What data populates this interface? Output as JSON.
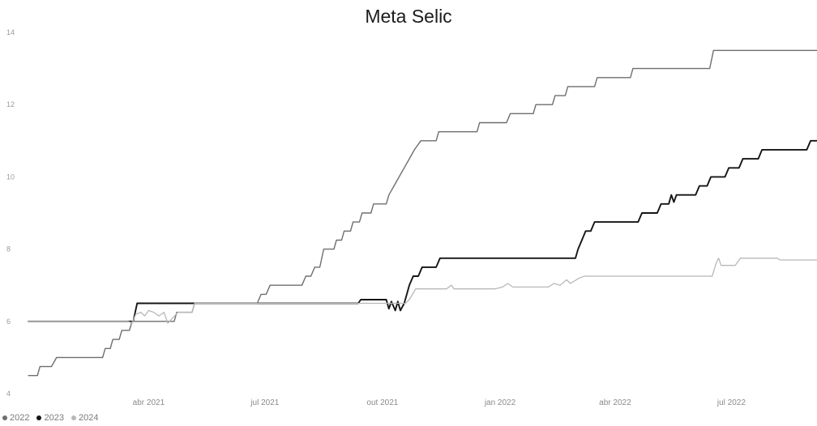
{
  "chart_data": {
    "type": "line",
    "title": "Meta Selic",
    "xlabel": "",
    "ylabel": "",
    "ylim": [
      4,
      14
    ],
    "xlim": [
      "2020-12-26",
      "2022-09-06"
    ],
    "yticks": [
      4,
      6,
      8,
      10,
      12,
      14
    ],
    "xticks": [
      {
        "date": "2021-04-01",
        "label": "abr 2021"
      },
      {
        "date": "2021-07-01",
        "label": "jul 2021"
      },
      {
        "date": "2021-10-01",
        "label": "out 2021"
      },
      {
        "date": "2022-01-01",
        "label": "jan 2022"
      },
      {
        "date": "2022-04-01",
        "label": "abr 2022"
      },
      {
        "date": "2022-07-01",
        "label": "jul 2022"
      }
    ],
    "grid": false,
    "legend": "bottom-left",
    "series": [
      {
        "name": "2022",
        "color": "#6e6e6e",
        "points": [
          [
            "2020-12-28",
            4.5
          ],
          [
            "2021-01-04",
            4.5
          ],
          [
            "2021-01-06",
            4.75
          ],
          [
            "2021-01-15",
            4.75
          ],
          [
            "2021-01-19",
            5.0
          ],
          [
            "2021-02-24",
            5.0
          ],
          [
            "2021-02-26",
            5.25
          ],
          [
            "2021-03-02",
            5.25
          ],
          [
            "2021-03-04",
            5.5
          ],
          [
            "2021-03-09",
            5.5
          ],
          [
            "2021-03-11",
            5.75
          ],
          [
            "2021-03-17",
            5.75
          ],
          [
            "2021-03-19",
            6.0
          ],
          [
            "2021-04-21",
            6.0
          ],
          [
            "2021-04-23",
            6.25
          ],
          [
            "2021-05-05",
            6.25
          ],
          [
            "2021-05-07",
            6.5
          ],
          [
            "2021-06-25",
            6.5
          ],
          [
            "2021-06-28",
            6.75
          ],
          [
            "2021-07-02",
            6.75
          ],
          [
            "2021-07-05",
            7.0
          ],
          [
            "2021-07-30",
            7.0
          ],
          [
            "2021-08-02",
            7.25
          ],
          [
            "2021-08-06",
            7.25
          ],
          [
            "2021-08-09",
            7.5
          ],
          [
            "2021-08-13",
            7.5
          ],
          [
            "2021-08-16",
            8.0
          ],
          [
            "2021-08-24",
            8.0
          ],
          [
            "2021-08-26",
            8.25
          ],
          [
            "2021-08-30",
            8.25
          ],
          [
            "2021-09-01",
            8.5
          ],
          [
            "2021-09-06",
            8.5
          ],
          [
            "2021-09-08",
            8.75
          ],
          [
            "2021-09-13",
            8.75
          ],
          [
            "2021-09-15",
            9.0
          ],
          [
            "2021-09-22",
            9.0
          ],
          [
            "2021-09-24",
            9.25
          ],
          [
            "2021-10-04",
            9.25
          ],
          [
            "2021-10-06",
            9.5
          ],
          [
            "2021-10-10",
            9.75
          ],
          [
            "2021-10-14",
            10.0
          ],
          [
            "2021-10-18",
            10.25
          ],
          [
            "2021-10-22",
            10.5
          ],
          [
            "2021-10-26",
            10.75
          ],
          [
            "2021-10-31",
            11.0
          ],
          [
            "2021-11-12",
            11.0
          ],
          [
            "2021-11-14",
            11.25
          ],
          [
            "2021-12-14",
            11.25
          ],
          [
            "2021-12-16",
            11.5
          ],
          [
            "2022-01-06",
            11.5
          ],
          [
            "2022-01-09",
            11.75
          ],
          [
            "2022-01-27",
            11.75
          ],
          [
            "2022-01-29",
            12.0
          ],
          [
            "2022-02-11",
            12.0
          ],
          [
            "2022-02-13",
            12.25
          ],
          [
            "2022-02-21",
            12.25
          ],
          [
            "2022-02-23",
            12.5
          ],
          [
            "2022-03-16",
            12.5
          ],
          [
            "2022-03-18",
            12.75
          ],
          [
            "2022-04-13",
            12.75
          ],
          [
            "2022-04-15",
            13.0
          ],
          [
            "2022-06-14",
            13.0
          ],
          [
            "2022-06-17",
            13.5
          ],
          [
            "2022-09-06",
            13.5
          ]
        ]
      },
      {
        "name": "2023",
        "color": "#151515",
        "points": [
          [
            "2020-12-28",
            6.0
          ],
          [
            "2021-03-20",
            6.0
          ],
          [
            "2021-03-23",
            6.5
          ],
          [
            "2021-09-12",
            6.5
          ],
          [
            "2021-09-14",
            6.6
          ],
          [
            "2021-10-04",
            6.6
          ],
          [
            "2021-10-06",
            6.35
          ],
          [
            "2021-10-08",
            6.55
          ],
          [
            "2021-10-11",
            6.3
          ],
          [
            "2021-10-13",
            6.55
          ],
          [
            "2021-10-15",
            6.3
          ],
          [
            "2021-10-18",
            6.5
          ],
          [
            "2021-10-20",
            6.75
          ],
          [
            "2021-10-22",
            7.0
          ],
          [
            "2021-10-25",
            7.25
          ],
          [
            "2021-10-29",
            7.25
          ],
          [
            "2021-11-01",
            7.5
          ],
          [
            "2021-11-12",
            7.5
          ],
          [
            "2021-11-15",
            7.75
          ],
          [
            "2022-03-01",
            7.75
          ],
          [
            "2022-03-03",
            8.0
          ],
          [
            "2022-03-06",
            8.25
          ],
          [
            "2022-03-09",
            8.5
          ],
          [
            "2022-03-13",
            8.5
          ],
          [
            "2022-03-16",
            8.75
          ],
          [
            "2022-04-19",
            8.75
          ],
          [
            "2022-04-22",
            9.0
          ],
          [
            "2022-05-04",
            9.0
          ],
          [
            "2022-05-07",
            9.25
          ],
          [
            "2022-05-13",
            9.25
          ],
          [
            "2022-05-15",
            9.5
          ],
          [
            "2022-05-17",
            9.3
          ],
          [
            "2022-05-19",
            9.5
          ],
          [
            "2022-06-03",
            9.5
          ],
          [
            "2022-06-06",
            9.75
          ],
          [
            "2022-06-12",
            9.75
          ],
          [
            "2022-06-15",
            10.0
          ],
          [
            "2022-06-26",
            10.0
          ],
          [
            "2022-06-29",
            10.25
          ],
          [
            "2022-07-07",
            10.25
          ],
          [
            "2022-07-10",
            10.5
          ],
          [
            "2022-07-22",
            10.5
          ],
          [
            "2022-07-25",
            10.75
          ],
          [
            "2022-08-29",
            10.75
          ],
          [
            "2022-09-01",
            11.0
          ],
          [
            "2022-09-06",
            11.0
          ]
        ]
      },
      {
        "name": "2024",
        "color": "#b8b8b8",
        "points": [
          [
            "2020-12-28",
            6.0
          ],
          [
            "2021-03-16",
            6.0
          ],
          [
            "2021-03-19",
            5.95
          ],
          [
            "2021-03-22",
            6.2
          ],
          [
            "2021-03-26",
            6.25
          ],
          [
            "2021-03-29",
            6.15
          ],
          [
            "2021-04-01",
            6.3
          ],
          [
            "2021-04-05",
            6.25
          ],
          [
            "2021-04-09",
            6.15
          ],
          [
            "2021-04-13",
            6.25
          ],
          [
            "2021-04-16",
            5.95
          ],
          [
            "2021-04-20",
            6.1
          ],
          [
            "2021-04-24",
            6.25
          ],
          [
            "2021-05-05",
            6.25
          ],
          [
            "2021-05-07",
            6.5
          ],
          [
            "2021-10-19",
            6.5
          ],
          [
            "2021-10-22",
            6.6
          ],
          [
            "2021-10-27",
            6.9
          ],
          [
            "2021-11-20",
            6.9
          ],
          [
            "2021-11-24",
            7.0
          ],
          [
            "2021-11-26",
            6.9
          ],
          [
            "2021-12-28",
            6.9
          ],
          [
            "2022-01-03",
            6.95
          ],
          [
            "2022-01-07",
            7.05
          ],
          [
            "2022-01-11",
            6.95
          ],
          [
            "2022-02-08",
            6.95
          ],
          [
            "2022-02-12",
            7.05
          ],
          [
            "2022-02-17",
            7.0
          ],
          [
            "2022-02-22",
            7.15
          ],
          [
            "2022-02-25",
            7.05
          ],
          [
            "2022-03-04",
            7.2
          ],
          [
            "2022-03-08",
            7.25
          ],
          [
            "2022-06-16",
            7.25
          ],
          [
            "2022-06-19",
            7.6
          ],
          [
            "2022-06-21",
            7.75
          ],
          [
            "2022-06-23",
            7.55
          ],
          [
            "2022-07-04",
            7.55
          ],
          [
            "2022-07-08",
            7.75
          ],
          [
            "2022-08-06",
            7.75
          ],
          [
            "2022-08-08",
            7.7
          ],
          [
            "2022-09-06",
            7.7
          ]
        ]
      }
    ]
  }
}
